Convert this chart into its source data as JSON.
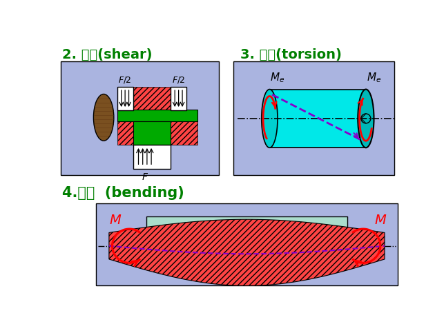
{
  "bg_color": "#ffffff",
  "panel_bg": "#aab4e0",
  "title1": "2. 剫切(shear)",
  "title2": "3. 扛转(torsion)",
  "title3": "4.弯曲  (bending)",
  "title_color": "#008000",
  "title_fontsize": 13,
  "shear_panel": [
    10,
    42,
    295,
    215
  ],
  "torsion_panel": [
    333,
    42,
    300,
    215
  ],
  "bending_panel": [
    75,
    310,
    565,
    155
  ],
  "cyan_color": "#00e8e8",
  "red_hatch_color": "#ff4444",
  "green_color": "#00aa00",
  "brown_color": "#7a5020",
  "purple_color": "#8800cc"
}
